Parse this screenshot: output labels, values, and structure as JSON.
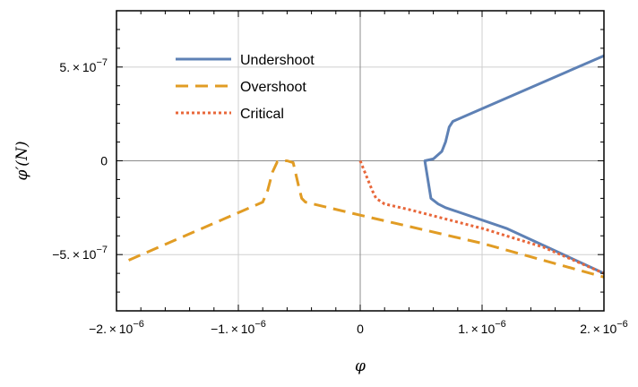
{
  "chart_data": {
    "type": "line",
    "xlabel": "φ",
    "ylabel": "φ′(N)",
    "xlim": [
      -2e-06,
      2e-06
    ],
    "ylim": [
      -8e-07,
      8e-07
    ],
    "grid": true,
    "legend_position": "top-left",
    "x_ticks": [
      {
        "value": -2e-06,
        "mantissa": "−2.",
        "exp": "−6"
      },
      {
        "value": -1e-06,
        "mantissa": "−1.",
        "exp": "−6"
      },
      {
        "value": 0,
        "mantissa": "0",
        "exp": ""
      },
      {
        "value": 1e-06,
        "mantissa": "1.",
        "exp": "−6"
      },
      {
        "value": 2e-06,
        "mantissa": "2.",
        "exp": "−6"
      }
    ],
    "y_ticks": [
      {
        "value": 5e-07,
        "mantissa": "5.",
        "exp": "−7"
      },
      {
        "value": 0,
        "mantissa": "0",
        "exp": ""
      },
      {
        "value": -5e-07,
        "mantissa": "−5.",
        "exp": "−7"
      }
    ],
    "series": [
      {
        "name": "Undershoot",
        "color": "#5e81b5",
        "style": "solid",
        "x": [
          2e-06,
          7.6e-07,
          7.3e-07,
          7e-07,
          6.7e-07,
          6e-07,
          5.3e-07,
          5.8e-07,
          6.4e-07,
          7e-07,
          1.2e-06,
          2e-06
        ],
        "y": [
          5.6e-07,
          2.1e-07,
          1.8e-07,
          1e-07,
          5e-08,
          1e-08,
          0.0,
          -2e-07,
          -2.3e-07,
          -2.5e-07,
          -3.6e-07,
          -6e-07
        ]
      },
      {
        "name": "Overshoot",
        "color": "#e19c24",
        "style": "dashed",
        "x": [
          -1.9e-06,
          -8e-07,
          -7.6e-07,
          -7.2e-07,
          -6.8e-07,
          -6.4e-07,
          -6e-07,
          -5.5e-07,
          -5e-07,
          -4.8e-07,
          -4.5e-07,
          0.0,
          1e-06,
          2e-06
        ],
        "y": [
          -5.3e-07,
          -2.2e-07,
          -1.6e-07,
          -6e-08,
          -5e-09,
          0.0,
          0.0,
          -1e-08,
          -1.5e-07,
          -2e-07,
          -2.2e-07,
          -2.9e-07,
          -4.4e-07,
          -6.2e-07
        ]
      },
      {
        "name": "Critical",
        "color": "#e8673a",
        "style": "dotted",
        "x": [
          0.0,
          5e-08,
          1e-07,
          1.3e-07,
          2e-07,
          4e-07,
          1e-06,
          1.5e-06,
          2e-06
        ],
        "y": [
          0.0,
          -8e-08,
          -1.6e-07,
          -2e-07,
          -2.3e-07,
          -2.6e-07,
          -3.6e-07,
          -4.6e-07,
          -6e-07
        ]
      }
    ]
  }
}
